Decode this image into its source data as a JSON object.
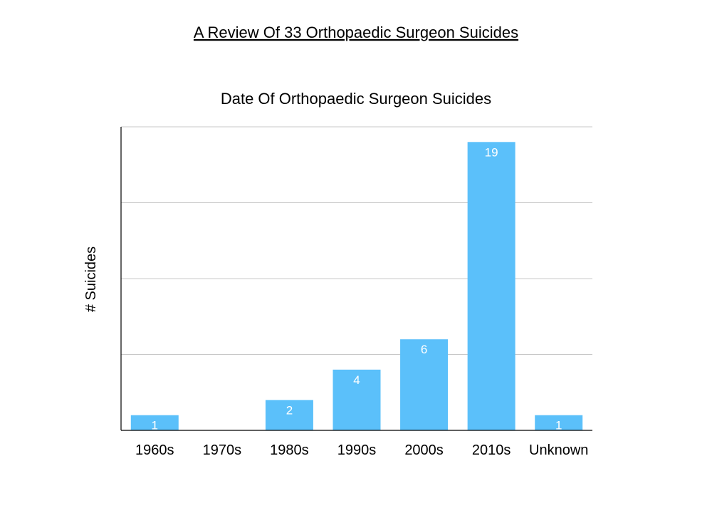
{
  "page": {
    "title": "A Review Of 33 Orthopaedic Surgeon Suicides"
  },
  "chart_data": {
    "type": "bar",
    "title": "Date Of Orthopaedic Surgeon Suicides",
    "xlabel": "",
    "ylabel": "# Suicides",
    "categories": [
      "1960s",
      "1970s",
      "1980s",
      "1990s",
      "2000s",
      "2010s",
      "Unknown"
    ],
    "values": [
      1,
      0,
      2,
      4,
      6,
      19,
      1
    ],
    "data_labels": [
      "1",
      "",
      "2",
      "4",
      "6",
      "19",
      "1"
    ],
    "ylim": [
      0,
      20
    ],
    "gridlines": [
      5,
      10,
      15,
      20
    ],
    "grid": true,
    "legend": "none",
    "bar_color": "#5bc0fa",
    "grid_color": "#c8c8c8",
    "axis_color": "#000000"
  }
}
